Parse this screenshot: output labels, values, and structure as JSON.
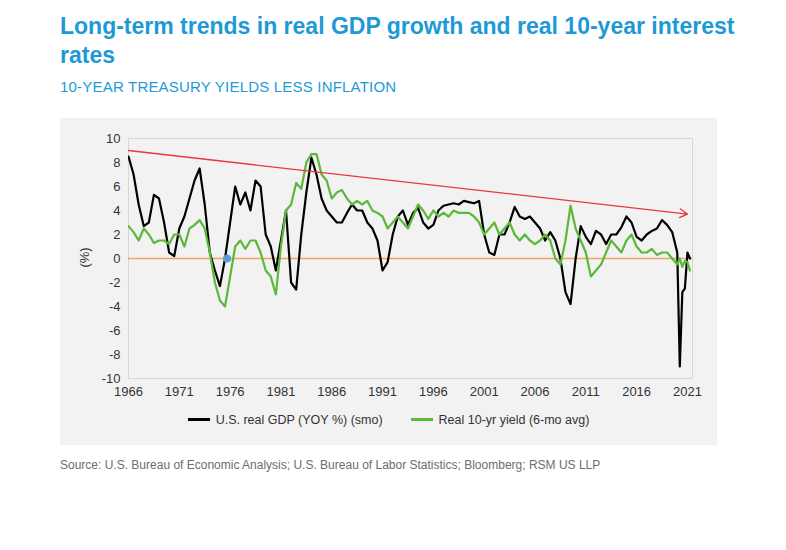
{
  "chart_data": {
    "type": "line",
    "title": "Long-term trends in real GDP growth and real 10-year interest rates",
    "subtitle": "10-YEAR TREASURY YIELDS LESS INFLATION",
    "source": "Source: U.S. Bureau of Economic Analysis; U.S. Bureau of Labor Statistics; Bloomberg; RSM US LLP",
    "y_label": "(%)",
    "x": [
      1966,
      1966.5,
      1967,
      1967.5,
      1968,
      1968.5,
      1969,
      1969.5,
      1970,
      1970.5,
      1971,
      1971.5,
      1972,
      1972.5,
      1973,
      1973.5,
      1974,
      1974.5,
      1975,
      1975.5,
      1976,
      1976.5,
      1977,
      1977.5,
      1978,
      1978.5,
      1979,
      1979.5,
      1980,
      1980.5,
      1981,
      1981.5,
      1982,
      1982.5,
      1983,
      1983.5,
      1984,
      1984.5,
      1985,
      1985.5,
      1986,
      1986.5,
      1987,
      1987.5,
      1988,
      1988.5,
      1989,
      1989.5,
      1990,
      1990.5,
      1991,
      1991.5,
      1992,
      1992.5,
      1993,
      1993.5,
      1994,
      1994.5,
      1995,
      1995.5,
      1996,
      1996.5,
      1997,
      1997.5,
      1998,
      1998.5,
      1999,
      1999.5,
      2000,
      2000.5,
      2001,
      2001.5,
      2002,
      2002.5,
      2003,
      2003.5,
      2004,
      2004.5,
      2005,
      2005.5,
      2006,
      2006.5,
      2007,
      2007.5,
      2008,
      2008.5,
      2009,
      2009.5,
      2010,
      2010.5,
      2011,
      2011.5,
      2012,
      2012.5,
      2013,
      2013.5,
      2014,
      2014.5,
      2015,
      2015.5,
      2016,
      2016.5,
      2017,
      2017.5,
      2018,
      2018.5,
      2019,
      2019.5,
      2020,
      2020.25,
      2020.5,
      2020.75,
      2021,
      2021.25
    ],
    "series": [
      {
        "name": "U.S. real GDP (YOY %) (smo)",
        "color": "#000000",
        "values": [
          8.5,
          7,
          4.5,
          2.7,
          3,
          5.3,
          5,
          3,
          0.5,
          0.2,
          2.5,
          3.5,
          5,
          6.5,
          7.5,
          4.5,
          0.5,
          -1,
          -2.3,
          0,
          3,
          6,
          4.5,
          5.5,
          4,
          6.5,
          6,
          2,
          1,
          -1,
          1.5,
          4,
          -2,
          -2.6,
          2,
          5.5,
          8.4,
          7,
          5,
          4,
          3.5,
          3,
          3,
          3.8,
          4.5,
          4,
          4,
          3,
          2.5,
          1.5,
          -1,
          -0.3,
          2,
          3.5,
          4,
          2.8,
          3.8,
          4.2,
          3,
          2.5,
          2.8,
          4,
          4.4,
          4.5,
          4.6,
          4.5,
          4.8,
          4.7,
          4.6,
          4.8,
          2,
          0.5,
          0.3,
          2,
          2,
          3,
          4.3,
          3.5,
          3.3,
          3.5,
          3,
          2.5,
          1.5,
          2.2,
          1.5,
          0,
          -2.8,
          -3.8,
          0,
          2.7,
          1.8,
          1.2,
          2.3,
          2,
          1.2,
          2,
          2,
          2.6,
          3.5,
          3,
          1.8,
          1.5,
          2,
          2.3,
          2.5,
          3.2,
          2.8,
          2.2,
          0.5,
          -9,
          -2.8,
          -2.5,
          0.5,
          0
        ]
      },
      {
        "name": "Real 10-yr yield (6-mo avg)",
        "color": "#5cb83a",
        "values": [
          2.7,
          2.2,
          1.5,
          2.5,
          2,
          1.3,
          1.5,
          1.5,
          1.2,
          2,
          2,
          1,
          2.5,
          2.8,
          3.2,
          2.5,
          0.5,
          -2,
          -3.5,
          -4,
          -1.5,
          1,
          1.5,
          0.8,
          1.5,
          1.5,
          0.5,
          -1,
          -1.5,
          -3,
          1,
          4,
          4.5,
          6.3,
          5.8,
          8,
          8.7,
          8.7,
          7,
          6.5,
          5,
          5.5,
          5.7,
          5,
          4.5,
          4.8,
          4.5,
          4.8,
          4,
          3.8,
          3.5,
          2.5,
          3,
          3.5,
          3,
          2.5,
          3.5,
          4.5,
          4,
          3.3,
          4,
          3.5,
          3.8,
          3.5,
          4,
          3.8,
          3.8,
          3.8,
          3.5,
          3,
          2,
          2.5,
          3,
          2,
          2.5,
          3,
          2,
          1.5,
          2,
          1.5,
          1.2,
          1.5,
          2,
          1.5,
          0,
          -0.5,
          1.5,
          4.4,
          2.5,
          1.5,
          0.5,
          -1.5,
          -1,
          -0.5,
          0.5,
          1.5,
          1,
          0.5,
          1.5,
          2,
          1,
          0.5,
          0.5,
          0.8,
          0.3,
          0.5,
          0.5,
          0,
          -0.5,
          0,
          -0.7,
          -0.2,
          -0.3,
          -1
        ]
      }
    ],
    "trend_line": {
      "x": [
        1966,
        2021
      ],
      "values": [
        9,
        3.7
      ],
      "color": "#e8383d"
    },
    "reference_line": {
      "value": 0,
      "color": "#f4a460"
    },
    "highlight": {
      "x": 1975.7,
      "value": 0,
      "color": "#5b9bd5",
      "marker": "circle"
    },
    "xlim": [
      1966,
      2021.5
    ],
    "xticks": [
      1966,
      1971,
      1976,
      1981,
      1986,
      1991,
      1996,
      2001,
      2006,
      2011,
      2016,
      2021
    ],
    "ylim": [
      -10,
      10
    ],
    "yticks": [
      -10,
      -8,
      -6,
      -4,
      -2,
      0,
      2,
      4,
      6,
      8,
      10
    ],
    "grid": false,
    "legend": "bottom"
  }
}
